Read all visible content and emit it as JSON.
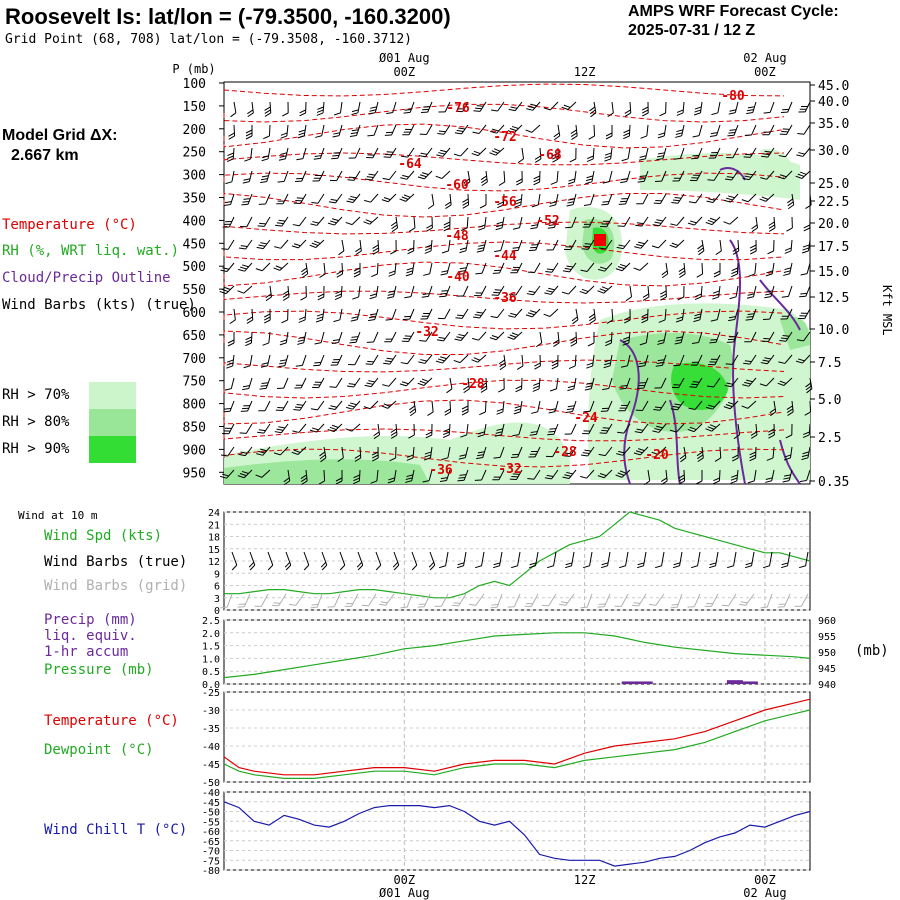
{
  "header": {
    "title": "Roosevelt Is:  lat/lon = (-79.3500, -160.3200)",
    "grid_point": "Grid Point (68, 708) lat/lon = (-79.3508, -160.3712)",
    "cycle_line1": "AMPS WRF Forecast Cycle:",
    "cycle_line2": "2025-07-31 / 12  Z",
    "model_grid_label": "Model Grid ΔX:",
    "model_grid_value": "2.667 km"
  },
  "legend": {
    "temperature": "Temperature (°C)",
    "rh": "RH (%, WRT liq. wat.)",
    "cloud": "Cloud/Precip Outline",
    "wind_barbs": "Wind Barbs (kts) (true)",
    "rh70": "RH > 70%",
    "rh80": "RH > 80%",
    "rh90": "RH > 90%",
    "wind_10m": "Wind at 10 m",
    "wind_spd": "Wind Spd (kts)",
    "wind_barbs_true": "Wind Barbs (true)",
    "wind_barbs_grid": "Wind Barbs (grid)",
    "precip_1": "Precip (mm)",
    "precip_2": "liq. equiv.",
    "precip_3": "1-hr accum",
    "pressure": "Pressure (mb)",
    "pressure_unit": "(mb)",
    "temp2": "Temperature (°C)",
    "dewpoint": "Dewpoint (°C)",
    "windchill": "Wind Chill T (°C)"
  },
  "colors": {
    "temperature": "#dd0000",
    "rh": "#22aa22",
    "cloud": "#6a2a9a",
    "rh70": "#ccf5cc",
    "rh80": "#99e699",
    "rh90": "#33dd33",
    "windchill": "#1a1aaa",
    "gridbarb": "#b0b0b0"
  },
  "time_axis": {
    "top": [
      {
        "label": "Ø01 Aug",
        "sub": "00Z",
        "t": 12
      },
      {
        "label": "",
        "sub": "12Z",
        "t": 24
      },
      {
        "label": "02 Aug",
        "sub": "00Z",
        "t": 36
      }
    ],
    "bottom": [
      {
        "label": "00Z",
        "sub": "Ø01 Aug",
        "t": 12
      },
      {
        "label": "12Z",
        "sub": "",
        "t": 24
      },
      {
        "label": "00Z",
        "sub": "02 Aug",
        "t": 36
      }
    ],
    "t_range": [
      0,
      39
    ]
  },
  "chart_data": [
    {
      "type": "heatmap",
      "title": "",
      "ylabel": "P (mb)",
      "yticks": [
        "100",
        "150",
        "200",
        "250",
        "300",
        "350",
        "400",
        "450",
        "500",
        "550",
        "600",
        "650",
        "700",
        "750",
        "800",
        "850",
        "900",
        "950"
      ],
      "ylabel_right": "Kft MSL",
      "yticks_right": [
        "45.0",
        "40.0",
        "35.0",
        "30.0",
        "25.0",
        "22.5",
        "20.0",
        "17.5",
        "15.0",
        "12.5",
        "10.0",
        "7.5",
        "5.0",
        "2.5",
        "0.35"
      ],
      "temperature_labels": [
        "-76",
        "-72",
        "-68",
        "-64",
        "-60",
        "-56",
        "-52",
        "-48",
        "-44",
        "-40",
        "-36",
        "-32",
        "-28",
        "-24",
        "-20",
        "-28",
        "-32",
        "-36",
        "-80"
      ]
    },
    {
      "type": "line",
      "title": "Wind at 10 m",
      "yticks": [
        "24",
        "21",
        "18",
        "15",
        "12",
        "9",
        "6",
        "3",
        "0"
      ],
      "ylim": [
        0,
        24
      ],
      "series": [
        {
          "name": "Wind Spd (kts)",
          "t": [
            0,
            1,
            2,
            3,
            4,
            5,
            6,
            7,
            8,
            9,
            10,
            11,
            12,
            13,
            14,
            15,
            16,
            17,
            18,
            19,
            20,
            21,
            22,
            23,
            24,
            25,
            26,
            27,
            28,
            29,
            30,
            31,
            32,
            33,
            34,
            35,
            36,
            37,
            38,
            39
          ],
          "values": [
            4,
            4,
            4.5,
            5,
            5,
            4.5,
            4,
            4,
            4.5,
            5,
            5,
            4.5,
            4,
            3.5,
            3,
            3,
            4,
            6,
            7,
            6,
            9,
            12,
            14,
            16,
            17,
            18,
            21,
            24,
            23,
            22,
            20,
            19,
            18,
            17,
            16,
            15,
            14,
            14,
            13,
            12
          ]
        }
      ]
    },
    {
      "type": "line",
      "title": "",
      "yticks_left": [
        "2.5",
        "2.0",
        "1.5",
        "1.0",
        "0.5",
        "0.0"
      ],
      "yticks_right": [
        "960",
        "955",
        "950",
        "945",
        "940"
      ],
      "ylim_left": [
        0,
        2.5
      ],
      "ylim_right": [
        940,
        960
      ],
      "series": [
        {
          "name": "Pressure (mb)",
          "t": [
            0,
            2,
            4,
            6,
            8,
            10,
            12,
            14,
            16,
            18,
            20,
            22,
            24,
            26,
            28,
            30,
            32,
            34,
            36,
            38,
            39
          ],
          "values": [
            942,
            943,
            944.5,
            946,
            947.5,
            949,
            951,
            952,
            953.5,
            955,
            955.5,
            956,
            956,
            955,
            953,
            951.5,
            950.5,
            949.5,
            949,
            948.5,
            948
          ]
        },
        {
          "name": "Precip (mm)",
          "t": [
            27,
            28,
            34,
            35
          ],
          "values": [
            0.1,
            0.1,
            0.15,
            0.1
          ]
        }
      ]
    },
    {
      "type": "line",
      "title": "",
      "yticks": [
        "-25",
        "-30",
        "-35",
        "-40",
        "-45",
        "-50"
      ],
      "ylim": [
        -50,
        -25
      ],
      "series": [
        {
          "name": "Temperature (°C)",
          "t": [
            0,
            1,
            2,
            4,
            6,
            8,
            10,
            12,
            14,
            16,
            18,
            20,
            22,
            24,
            26,
            28,
            30,
            32,
            34,
            36,
            38,
            39
          ],
          "values": [
            -43,
            -46,
            -47,
            -48,
            -48,
            -47,
            -46,
            -46,
            -47,
            -45,
            -44,
            -44,
            -45,
            -42,
            -40,
            -39,
            -38,
            -36,
            -33,
            -30,
            -28,
            -27
          ]
        },
        {
          "name": "Dewpoint (°C)",
          "t": [
            0,
            1,
            2,
            4,
            6,
            8,
            10,
            12,
            14,
            16,
            18,
            20,
            22,
            24,
            26,
            28,
            30,
            32,
            34,
            36,
            38,
            39
          ],
          "values": [
            -45,
            -47,
            -48,
            -49,
            -49,
            -48,
            -47,
            -47,
            -48,
            -46,
            -45,
            -45,
            -46,
            -44,
            -43,
            -42,
            -41,
            -39,
            -36,
            -33,
            -31,
            -30
          ]
        }
      ]
    },
    {
      "type": "line",
      "title": "",
      "yticks": [
        "-40",
        "-45",
        "-50",
        "-55",
        "-60",
        "-65",
        "-70",
        "-75",
        "-80"
      ],
      "ylim": [
        -80,
        -40
      ],
      "series": [
        {
          "name": "Wind Chill T (°C)",
          "t": [
            0,
            1,
            2,
            3,
            4,
            5,
            6,
            7,
            8,
            9,
            10,
            11,
            12,
            13,
            14,
            15,
            16,
            17,
            18,
            19,
            20,
            21,
            22,
            23,
            24,
            25,
            26,
            27,
            28,
            29,
            30,
            31,
            32,
            33,
            34,
            35,
            36,
            37,
            38,
            39
          ],
          "values": [
            -45,
            -48,
            -55,
            -57,
            -52,
            -54,
            -57,
            -58,
            -55,
            -51,
            -48,
            -47,
            -47,
            -47,
            -48,
            -47,
            -50,
            -55,
            -57,
            -55,
            -62,
            -72,
            -74,
            -75,
            -75,
            -75,
            -78,
            -77,
            -76,
            -74,
            -73,
            -70,
            -66,
            -63,
            -61,
            -57,
            -58,
            -55,
            -52,
            -50
          ]
        }
      ]
    }
  ]
}
